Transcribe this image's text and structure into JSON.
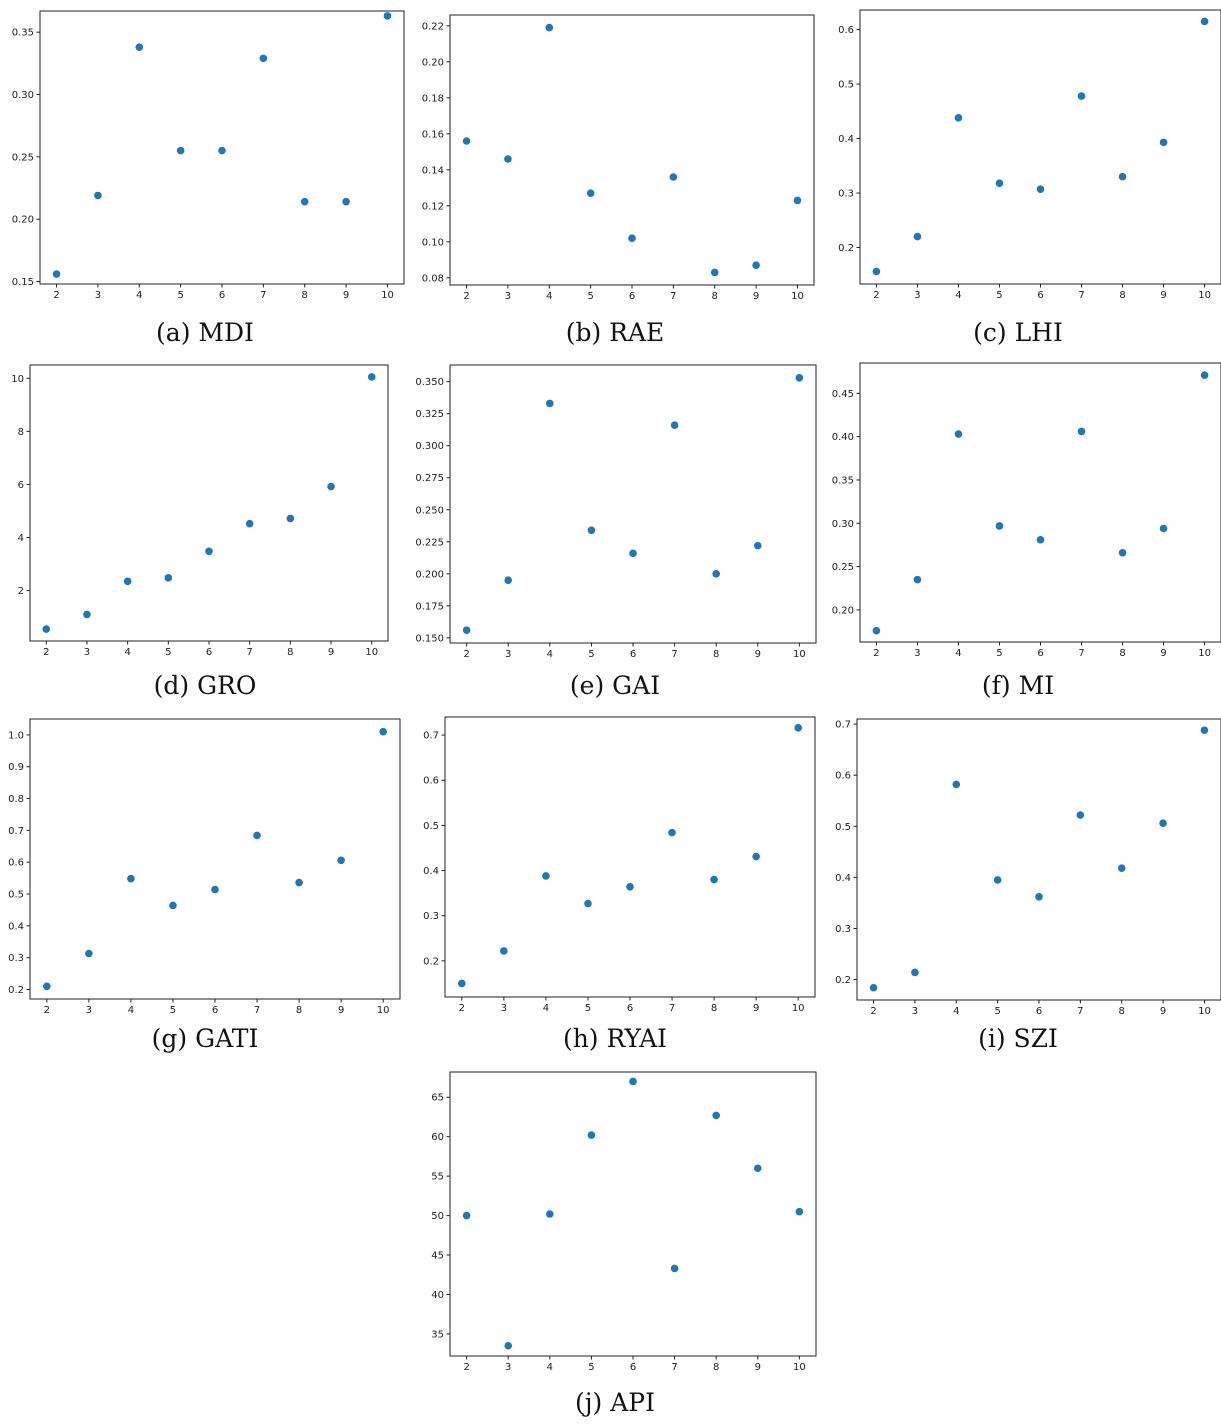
{
  "chart_data": [
    {
      "type": "scatter",
      "caption": "(a) MDI",
      "x": [
        2,
        3,
        4,
        5,
        6,
        7,
        8,
        9,
        10
      ],
      "y": [
        0.156,
        0.219,
        0.338,
        0.255,
        0.255,
        0.329,
        0.214,
        0.214,
        0.363
      ],
      "yticks": [
        0.15,
        0.2,
        0.25,
        0.3,
        0.35
      ],
      "ylim": [
        0.148,
        0.367
      ],
      "xlim": [
        1.6,
        10.4
      ],
      "color": "#1f77b4"
    },
    {
      "type": "scatter",
      "caption": "(b) RAE",
      "x": [
        2,
        3,
        4,
        5,
        6,
        7,
        8,
        9,
        10
      ],
      "y": [
        0.156,
        0.146,
        0.219,
        0.127,
        0.102,
        0.136,
        0.083,
        0.087,
        0.123
      ],
      "yticks": [
        0.08,
        0.1,
        0.12,
        0.14,
        0.16,
        0.18,
        0.2,
        0.22
      ],
      "ylim": [
        0.076,
        0.226
      ],
      "xlim": [
        1.6,
        10.4
      ],
      "color": "#1f77b4"
    },
    {
      "type": "scatter",
      "caption": "(c) LHI",
      "x": [
        2,
        3,
        4,
        5,
        6,
        7,
        8,
        9,
        10
      ],
      "y": [
        0.156,
        0.22,
        0.438,
        0.318,
        0.307,
        0.478,
        0.33,
        0.393,
        0.615
      ],
      "yticks": [
        0.2,
        0.3,
        0.4,
        0.5,
        0.6
      ],
      "ylim": [
        0.133,
        0.636
      ],
      "xlim": [
        1.6,
        10.4
      ],
      "color": "#1f77b4"
    },
    {
      "type": "scatter",
      "caption": "(d) GRO",
      "x": [
        2,
        3,
        4,
        5,
        6,
        7,
        8,
        9,
        10
      ],
      "y": [
        0.55,
        1.1,
        2.35,
        2.48,
        3.48,
        4.52,
        4.72,
        5.92,
        10.05
      ],
      "yticks": [
        2,
        4,
        6,
        8,
        10
      ],
      "ylim": [
        0.1,
        10.5
      ],
      "xlim": [
        1.6,
        10.4
      ],
      "color": "#1f77b4"
    },
    {
      "type": "scatter",
      "caption": "(e) GAI",
      "x": [
        2,
        3,
        4,
        5,
        6,
        7,
        8,
        9,
        10
      ],
      "y": [
        0.156,
        0.195,
        0.333,
        0.234,
        0.216,
        0.316,
        0.2,
        0.222,
        0.353
      ],
      "yticks": [
        0.15,
        0.175,
        0.2,
        0.225,
        0.25,
        0.275,
        0.3,
        0.325,
        0.35
      ],
      "ylim": [
        0.146,
        0.363
      ],
      "xlim": [
        1.6,
        10.4
      ],
      "color": "#1f77b4"
    },
    {
      "type": "scatter",
      "caption": "(f) MI",
      "x": [
        2,
        3,
        4,
        5,
        6,
        7,
        8,
        9,
        10
      ],
      "y": [
        0.176,
        0.235,
        0.403,
        0.297,
        0.281,
        0.406,
        0.266,
        0.294,
        0.471
      ],
      "yticks": [
        0.2,
        0.25,
        0.3,
        0.35,
        0.4,
        0.45
      ],
      "ylim": [
        0.163,
        0.485
      ],
      "xlim": [
        1.6,
        10.4
      ],
      "color": "#1f77b4"
    },
    {
      "type": "scatter",
      "caption": "(g) GATI",
      "x": [
        2,
        3,
        4,
        5,
        6,
        7,
        8,
        9,
        10
      ],
      "y": [
        0.21,
        0.313,
        0.548,
        0.464,
        0.514,
        0.684,
        0.536,
        0.606,
        1.01
      ],
      "yticks": [
        0.2,
        0.3,
        0.4,
        0.5,
        0.6,
        0.7,
        0.8,
        0.9,
        1.0
      ],
      "ylim": [
        0.17,
        1.05
      ],
      "xlim": [
        1.6,
        10.4
      ],
      "color": "#1f77b4"
    },
    {
      "type": "scatter",
      "caption": "(h) RYAI",
      "x": [
        2,
        3,
        4,
        5,
        6,
        7,
        8,
        9,
        10
      ],
      "y": [
        0.15,
        0.222,
        0.388,
        0.327,
        0.364,
        0.484,
        0.38,
        0.431,
        0.716
      ],
      "yticks": [
        0.2,
        0.3,
        0.4,
        0.5,
        0.6,
        0.7
      ],
      "ylim": [
        0.12,
        0.74
      ],
      "xlim": [
        1.6,
        10.4
      ],
      "color": "#1f77b4"
    },
    {
      "type": "scatter",
      "caption": "(i) SZI",
      "x": [
        2,
        3,
        4,
        5,
        6,
        7,
        8,
        9,
        10
      ],
      "y": [
        0.184,
        0.214,
        0.582,
        0.395,
        0.362,
        0.522,
        0.418,
        0.506,
        0.688
      ],
      "yticks": [
        0.2,
        0.3,
        0.4,
        0.5,
        0.6,
        0.7
      ],
      "ylim": [
        0.16,
        0.71
      ],
      "xlim": [
        1.6,
        10.4
      ],
      "color": "#1f77b4"
    },
    {
      "type": "scatter",
      "caption": "(j) API",
      "x": [
        2,
        3,
        4,
        5,
        6,
        7,
        8,
        9,
        10
      ],
      "y": [
        50.0,
        33.5,
        50.2,
        60.2,
        67.0,
        43.3,
        62.7,
        56.0,
        50.5
      ],
      "yticks": [
        35,
        40,
        45,
        50,
        55,
        60,
        65
      ],
      "ylim": [
        32.2,
        68.2
      ],
      "xlim": [
        1.6,
        10.4
      ],
      "color": "#1f77b4"
    }
  ]
}
